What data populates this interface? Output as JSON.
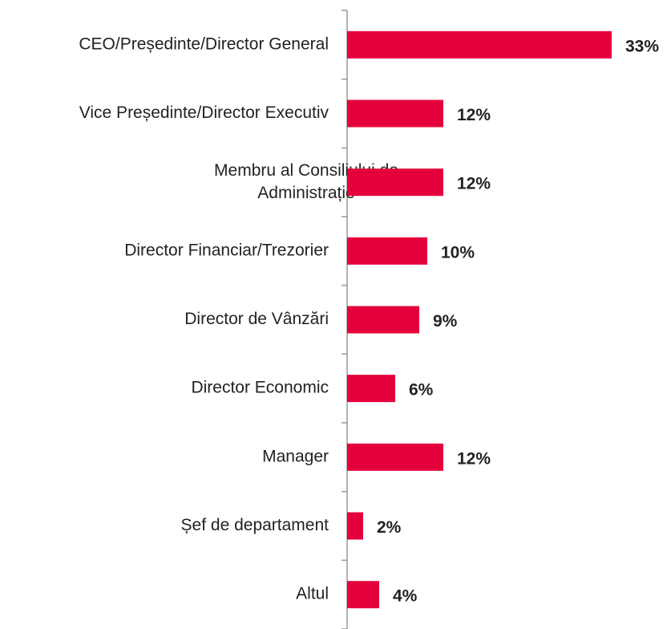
{
  "chart_data": {
    "type": "bar",
    "orientation": "horizontal",
    "categories": [
      "CEO/Președinte/Director General",
      "Vice Președinte/Director Executiv",
      "Membru al Consiliului de\nAdministrație",
      "Director Financiar/Trezorier",
      "Director de Vânzări",
      "Director Economic",
      "Manager",
      "Șef de departament",
      "Altul"
    ],
    "values": [
      33,
      12,
      12,
      10,
      9,
      6,
      12,
      2,
      4
    ],
    "value_labels": [
      "33%",
      "12%",
      "12%",
      "10%",
      "9%",
      "6%",
      "12%",
      "2%",
      "4%"
    ],
    "color": "#e4003b"
  }
}
